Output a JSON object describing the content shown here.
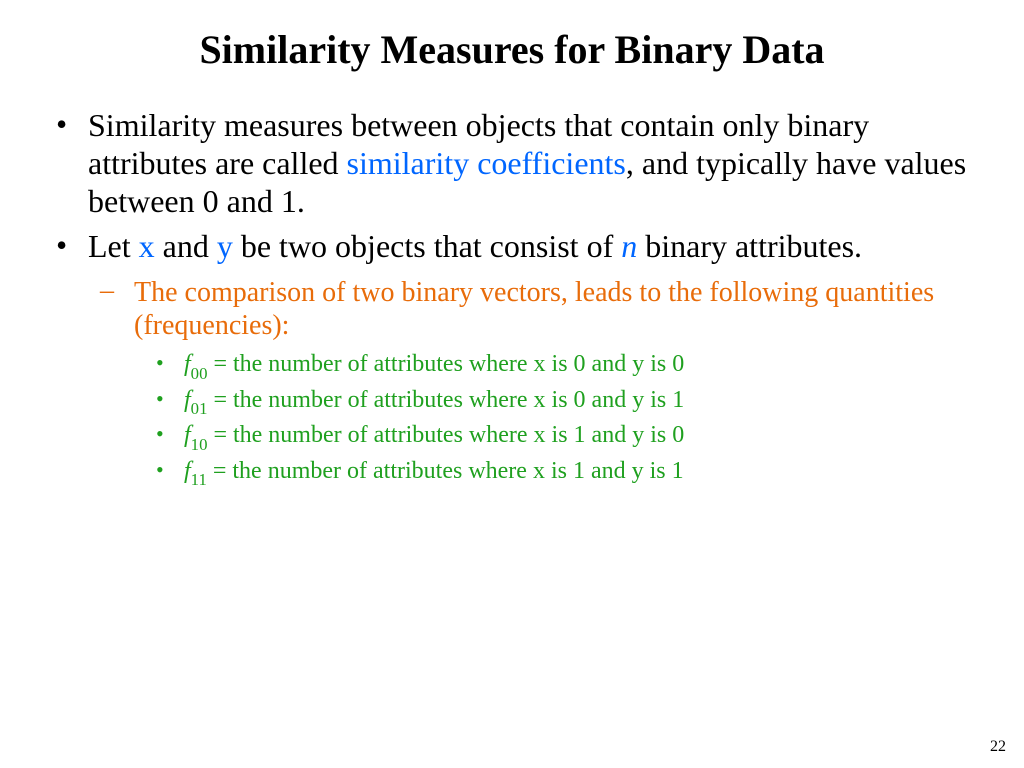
{
  "title": "Similarity Measures for Binary Data",
  "title_fontsize": 40,
  "body_fontsize": 32,
  "sub_fontsize": 28,
  "subsub_fontsize": 24,
  "line_height": 1.18,
  "colors": {
    "text": "#000000",
    "blue": "#0066ff",
    "orange": "#e86c0a",
    "green": "#1fa01f",
    "background": "#ffffff"
  },
  "bullet1": {
    "pre": "Similarity measures between objects that contain only binary attributes are called ",
    "term": "similarity coefficients",
    "post": ", and typically have values between 0 and 1."
  },
  "bullet2": {
    "p1": "Let ",
    "x": "x",
    "p2": " and ",
    "y": "y",
    "p3": " be two objects that consist of ",
    "n": "n",
    "p4": " binary attributes."
  },
  "sub1": "The comparison of two binary vectors, leads to the following quantities (frequencies):",
  "freq": [
    {
      "f": "f",
      "sub": "00",
      "eq": " = the number of attributes where x is 0 and y is 0"
    },
    {
      "f": "f",
      "sub": "01",
      "eq": " = the number of attributes where x is 0 and y is 1"
    },
    {
      "f": "f",
      "sub": "10",
      "eq": " = the number of attributes where x is 1 and y is 0"
    },
    {
      "f": "f",
      "sub": "11",
      "eq": " = the number of attributes where x is 1 and y is 1"
    }
  ],
  "page_number": "22"
}
